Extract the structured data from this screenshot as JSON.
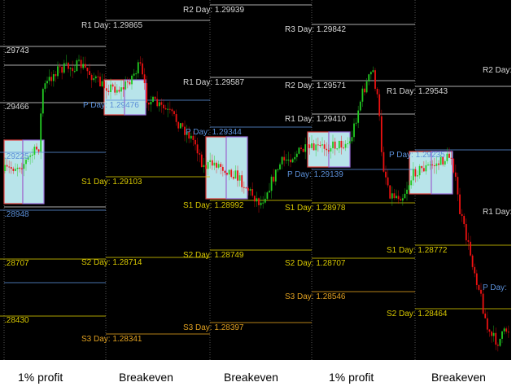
{
  "colors": {
    "background": "#000000",
    "bull": "#22cc22",
    "bear": "#ee1111",
    "resistance": "#d8d8d8",
    "pivot": "#5b8fd8",
    "support": "#d8c800",
    "support3": "#e0a020",
    "box_fill": "#b8e4ea",
    "box_border_entry": "#e04040",
    "box_border_exit": "#9a6ad8"
  },
  "chart_data": {
    "type": "candlestick",
    "labels": [
      {
        "text": "R2 Day: 1.29939",
        "kind": "resistance"
      },
      {
        "text": "R1 Day: 1.29865",
        "kind": "resistance"
      },
      {
        "text": ".29743",
        "kind": "resistance"
      },
      {
        "text": "R3 Day: 1.29842",
        "kind": "resistance"
      },
      {
        "text": "R2 Day:",
        "kind": "resistance"
      },
      {
        "text": "R1 Day: 1.29587",
        "kind": "resistance"
      },
      {
        "text": "R2 Day: 1.29571",
        "kind": "resistance"
      },
      {
        "text": "R1 Day: 1.29543",
        "kind": "resistance"
      },
      {
        "text": ".29466",
        "kind": "resistance"
      },
      {
        "text": "P Day: 1.29476",
        "kind": "pivot"
      },
      {
        "text": "R1 Day: 1.29410",
        "kind": "resistance"
      },
      {
        "text": "P Day: 1.29344",
        "kind": "pivot"
      },
      {
        "text": "P Day: 1.29235",
        "kind": "pivot"
      },
      {
        "text": ".29225",
        "kind": "pivot"
      },
      {
        "text": "P Day: 1.29139",
        "kind": "pivot"
      },
      {
        "text": "S1 Day: 1.29103",
        "kind": "support"
      },
      {
        "text": ".28948",
        "kind": "pivot"
      },
      {
        "text": "S1 Day: 1.28992",
        "kind": "support"
      },
      {
        "text": "S1 Day: 1.28978",
        "kind": "support"
      },
      {
        "text": "R1 Day:",
        "kind": "resistance"
      },
      {
        "text": ".28707",
        "kind": "support"
      },
      {
        "text": "S2 Day: 1.28714",
        "kind": "support"
      },
      {
        "text": "S2 Day: 1.28749",
        "kind": "support"
      },
      {
        "text": "S2 Day: 1.28707",
        "kind": "support"
      },
      {
        "text": "S1 Day: 1.28772",
        "kind": "support"
      },
      {
        "text": "P Day:",
        "kind": "pivot"
      },
      {
        "text": "S3 Day: 1.28546",
        "kind": "support3"
      },
      {
        "text": "S2 Day: 1.28464",
        "kind": "support"
      },
      {
        "text": ".28430",
        "kind": "support"
      },
      {
        "text": "S3 Day: 1.28397",
        "kind": "support3"
      },
      {
        "text": "S3 Day: 1.28341",
        "kind": "support3"
      }
    ],
    "captions": [
      "1% profit",
      "Breakeven",
      "Breakeven",
      "1% profit",
      "Breakeven"
    ]
  }
}
